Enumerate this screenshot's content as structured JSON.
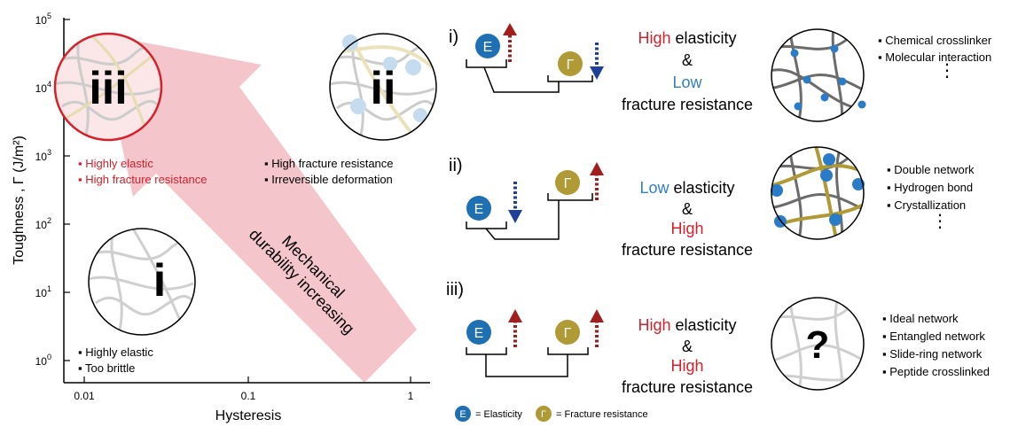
{
  "plot": {
    "ylabel": "Toughness , Γ (J/m²)",
    "xlabel": "Hysteresis",
    "xticks": [
      "0.01",
      "0.1",
      "1"
    ],
    "yticks": [
      {
        "base": "10",
        "exp": "0"
      },
      {
        "base": "10",
        "exp": "1"
      },
      {
        "base": "10",
        "exp": "2"
      },
      {
        "base": "10",
        "exp": "3"
      },
      {
        "base": "10",
        "exp": "4"
      },
      {
        "base": "10",
        "exp": "5"
      }
    ],
    "arrow_text": [
      "Mechanical",
      "durability increasing"
    ],
    "region_iii": {
      "numeral": "iii",
      "notes": [
        "Highly elastic",
        "High fracture resistance"
      ]
    },
    "region_ii": {
      "numeral": "ii",
      "notes": [
        "High fracture resistance",
        "Irreversible deformation"
      ]
    },
    "region_i": {
      "numeral": "i",
      "notes": [
        "Highly elastic",
        "Too brittle"
      ]
    }
  },
  "rows": [
    {
      "label": "i)",
      "line1": {
        "word": "High",
        "color": "#d6202a",
        "rest": " elasticity"
      },
      "amp": "&",
      "line2": {
        "word": "Low",
        "color": "#2f7fc1",
        "rest": ""
      },
      "line3": "fracture resistance",
      "examples": [
        "Chemical crosslinker",
        "Molecular interaction"
      ]
    },
    {
      "label": "ii)",
      "line1": {
        "word": "Low",
        "color": "#2f7fc1",
        "rest": " elasticity"
      },
      "amp": "&",
      "line2": {
        "word": "High",
        "color": "#d6202a",
        "rest": ""
      },
      "line3": "fracture resistance",
      "examples": [
        "Double network",
        "Hydrogen bond",
        "Crystallization"
      ]
    },
    {
      "label": "iii)",
      "line1": {
        "word": "High",
        "color": "#d6202a",
        "rest": " elasticity"
      },
      "amp": "&",
      "line2": {
        "word": "High",
        "color": "#d6202a",
        "rest": ""
      },
      "line3": "fracture resistance",
      "examples": [
        "Ideal network",
        "Entangled network",
        "Slide-ring network",
        "Peptide crosslinked"
      ],
      "mystery": "?"
    }
  ],
  "legend": {
    "e_symbol": "E",
    "e_label": "= Elasticity",
    "g_symbol": "Γ",
    "g_label": "= Fracture resistance"
  },
  "colors": {
    "elastic_blue": "#1f6fb3",
    "fracture_gold": "#b09a35",
    "arrow_pink": "#f4c6cc",
    "red": "#d6202a",
    "arrow_up": "#a21e1e",
    "arrow_down": "#1f3f9a"
  }
}
